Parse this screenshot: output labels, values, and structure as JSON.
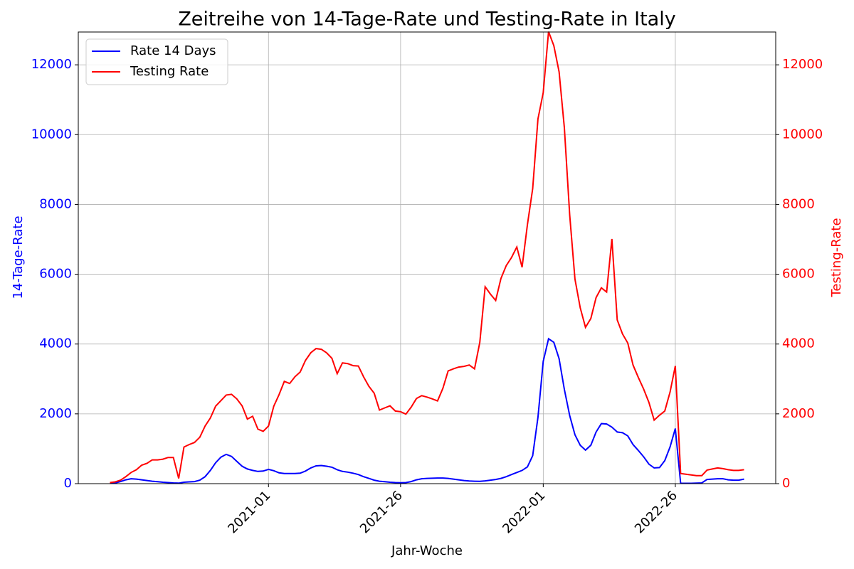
{
  "chart_data": {
    "type": "line",
    "title": "Zeitreihe von 14-Tage-Rate und Testing-Rate in Italy",
    "xlabel": "Jahr-Woche",
    "ylabel": "14-Tage-Rate",
    "y2label": "Testing-Rate",
    "categories": [
      null,
      null,
      null,
      null,
      null,
      null,
      null,
      null,
      null,
      null,
      null,
      null,
      null,
      null,
      null,
      null,
      null,
      null,
      null,
      null,
      null,
      null,
      null,
      null,
      null,
      null,
      null,
      null,
      null,
      null,
      "2021-01",
      null,
      null,
      null,
      null,
      null,
      null,
      null,
      null,
      null,
      null,
      null,
      null,
      null,
      null,
      null,
      null,
      null,
      null,
      null,
      null,
      null,
      null,
      null,
      null,
      "2021-26",
      null,
      null,
      null,
      null,
      null,
      null,
      null,
      null,
      null,
      null,
      null,
      null,
      null,
      null,
      null,
      null,
      null,
      null,
      null,
      null,
      null,
      null,
      null,
      null,
      null,
      null,
      "2022-01",
      null,
      null,
      null,
      null,
      null,
      null,
      null,
      null,
      null,
      null,
      null,
      null,
      null,
      null,
      null,
      null,
      null,
      null,
      null,
      null,
      null,
      null,
      null,
      null,
      "2022-26",
      null,
      null,
      null,
      null,
      null,
      null,
      null,
      null,
      null,
      null,
      null,
      null,
      null
    ],
    "series": [
      {
        "name": "Rate 14 Days",
        "color": "#0000ff",
        "axis": "y",
        "values": [
          10,
          20,
          60,
          110,
          140,
          130,
          110,
          90,
          70,
          55,
          40,
          30,
          20,
          15,
          40,
          50,
          60,
          100,
          200,
          380,
          600,
          760,
          840,
          780,
          640,
          500,
          420,
          380,
          350,
          360,
          410,
          370,
          310,
          290,
          290,
          290,
          300,
          360,
          450,
          510,
          520,
          500,
          470,
          400,
          350,
          330,
          300,
          260,
          200,
          150,
          100,
          70,
          55,
          40,
          30,
          25,
          30,
          60,
          110,
          140,
          150,
          155,
          160,
          160,
          150,
          130,
          110,
          90,
          75,
          70,
          65,
          80,
          100,
          120,
          150,
          200,
          260,
          320,
          380,
          480,
          800,
          1900,
          3500,
          4150,
          4050,
          3580,
          2700,
          1950,
          1400,
          1100,
          960,
          1100,
          1480,
          1720,
          1710,
          1620,
          1480,
          1460,
          1370,
          1120,
          950,
          770,
          560,
          450,
          460,
          660,
          1050,
          1580,
          10,
          10,
          10,
          15,
          20,
          120,
          130,
          140,
          140,
          110,
          100,
          100,
          130
        ]
      },
      {
        "name": "Testing Rate",
        "color": "#ff0000",
        "axis": "y2",
        "values": [
          30,
          50,
          100,
          200,
          320,
          400,
          530,
          580,
          680,
          680,
          700,
          750,
          750,
          150,
          1050,
          1120,
          1180,
          1330,
          1650,
          1880,
          2220,
          2380,
          2540,
          2560,
          2430,
          2230,
          1850,
          1930,
          1560,
          1500,
          1650,
          2220,
          2550,
          2930,
          2870,
          3060,
          3200,
          3530,
          3750,
          3870,
          3850,
          3750,
          3590,
          3150,
          3460,
          3440,
          3380,
          3370,
          3060,
          2790,
          2590,
          2110,
          2170,
          2230,
          2080,
          2060,
          1990,
          2190,
          2440,
          2520,
          2480,
          2430,
          2370,
          2730,
          3230,
          3290,
          3340,
          3360,
          3400,
          3290,
          4050,
          5640,
          5430,
          5250,
          5880,
          6250,
          6480,
          6780,
          6200,
          7420,
          8450,
          10450,
          11200,
          12950,
          12550,
          11800,
          10200,
          7700,
          5860,
          5040,
          4480,
          4730,
          5330,
          5610,
          5490,
          7010,
          4690,
          4290,
          4030,
          3400,
          3040,
          2710,
          2330,
          1820,
          1960,
          2080,
          2620,
          3370,
          290,
          270,
          250,
          230,
          230,
          390,
          420,
          450,
          430,
          400,
          380,
          380,
          400
        ]
      }
    ],
    "ylim": [
      0,
      12940
    ],
    "yticks": [
      0,
      2000,
      4000,
      6000,
      8000,
      10000,
      12000
    ],
    "y2lim": [
      0,
      12940
    ],
    "y2ticks": [
      0,
      2000,
      4000,
      6000,
      8000,
      10000,
      12000
    ],
    "grid": true,
    "legend": "upper left"
  }
}
